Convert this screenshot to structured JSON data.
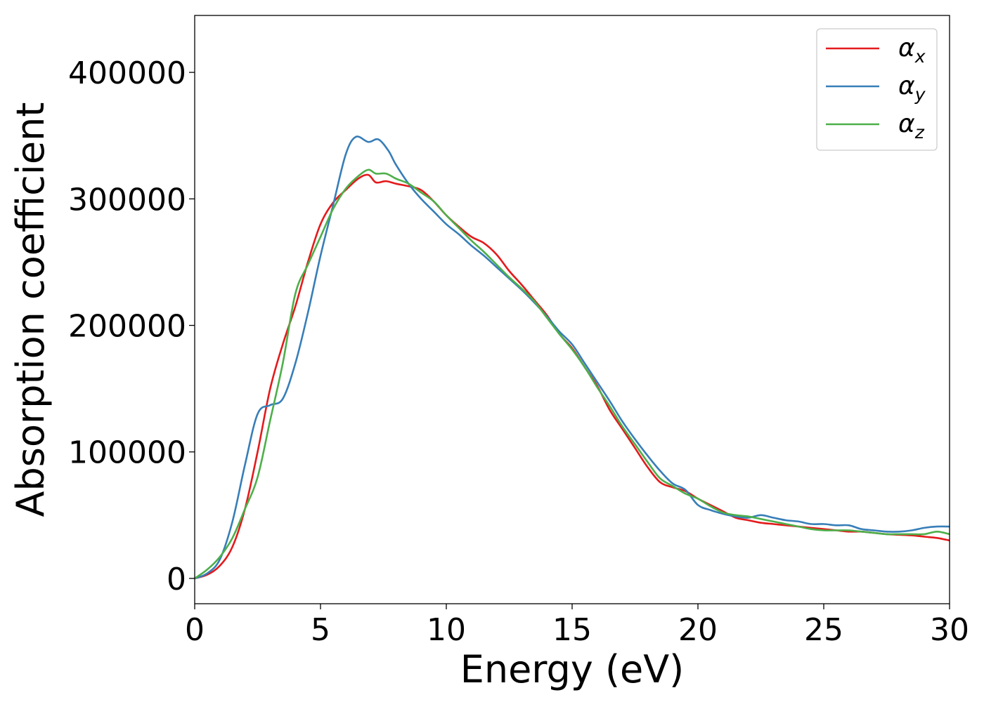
{
  "chart_data": {
    "type": "line",
    "xlabel": "Energy (eV)",
    "ylabel": "Absorption coefficient",
    "xlim": [
      0,
      30
    ],
    "ylim": [
      -20000,
      445000
    ],
    "x_ticks": [
      0,
      5,
      10,
      15,
      20,
      25,
      30
    ],
    "y_ticks": [
      0,
      100000,
      200000,
      300000,
      400000
    ],
    "grid": false,
    "legend_position": "top-right",
    "series": [
      {
        "name": "α",
        "subscript": "x",
        "color": "#e41a1c",
        "x": [
          0,
          0.5,
          1,
          1.5,
          2,
          2.5,
          3,
          3.5,
          4,
          4.5,
          5,
          5.5,
          6,
          6.5,
          6.9,
          7.2,
          7.6,
          8,
          8.5,
          9,
          9.5,
          10,
          10.5,
          11,
          11.5,
          12,
          12.5,
          13,
          13.5,
          14,
          14.5,
          15,
          15.5,
          16,
          16.5,
          17,
          17.5,
          18,
          18.5,
          19,
          19.5,
          20,
          20.5,
          21,
          21.5,
          22,
          22.5,
          23,
          23.5,
          24,
          24.5,
          25,
          25.5,
          26,
          26.5,
          27,
          27.5,
          28,
          28.5,
          29,
          29.5,
          30
        ],
        "y": [
          0,
          3000,
          10000,
          25000,
          55000,
          100000,
          150000,
          185000,
          215000,
          250000,
          280000,
          297000,
          307000,
          316000,
          319000,
          313000,
          314000,
          312000,
          310000,
          307000,
          298000,
          287000,
          278000,
          270000,
          265000,
          256000,
          243000,
          232000,
          220000,
          208000,
          193000,
          182000,
          167000,
          152000,
          133000,
          118000,
          103000,
          88000,
          76000,
          72000,
          69000,
          63000,
          58000,
          53000,
          48000,
          46000,
          44000,
          43000,
          42000,
          41000,
          40000,
          39000,
          38000,
          37000,
          37000,
          36000,
          35000,
          34500,
          34000,
          33000,
          32000,
          30000
        ]
      },
      {
        "name": "α",
        "subscript": "y",
        "color": "#377eb8",
        "x": [
          0,
          0.5,
          1,
          1.5,
          2,
          2.5,
          3,
          3.5,
          4,
          4.5,
          5,
          5.5,
          6,
          6.4,
          6.9,
          7.3,
          7.7,
          8,
          8.5,
          9,
          9.5,
          10,
          10.5,
          11,
          11.5,
          12,
          12.5,
          13,
          13.5,
          14,
          14.5,
          15,
          15.5,
          16,
          16.5,
          17,
          17.5,
          18,
          18.5,
          19,
          19.5,
          20,
          20.5,
          21,
          21.5,
          22,
          22.5,
          23,
          23.5,
          24,
          24.5,
          25,
          25.5,
          26,
          26.5,
          27,
          27.5,
          28,
          28.5,
          29,
          29.5,
          30
        ],
        "y": [
          0,
          4000,
          15000,
          45000,
          90000,
          130000,
          137000,
          142000,
          170000,
          210000,
          255000,
          295000,
          335000,
          349000,
          345000,
          347000,
          338000,
          327000,
          312000,
          300000,
          290000,
          280000,
          272000,
          263000,
          255000,
          246000,
          237000,
          228000,
          218000,
          207000,
          195000,
          185000,
          170000,
          155000,
          140000,
          124000,
          110000,
          97000,
          85000,
          75000,
          70000,
          58000,
          54000,
          51000,
          49000,
          48000,
          50000,
          48000,
          46000,
          45000,
          43000,
          43000,
          42000,
          42000,
          39000,
          38000,
          37000,
          37000,
          38000,
          40000,
          41000,
          41000
        ]
      },
      {
        "name": "α",
        "subscript": "z",
        "color": "#4daf4a",
        "x": [
          0,
          0.5,
          1,
          1.5,
          2,
          2.5,
          3,
          3.5,
          4,
          4.5,
          5,
          5.5,
          6,
          6.5,
          6.9,
          7.2,
          7.6,
          8,
          8.5,
          9,
          9.5,
          10,
          10.5,
          11,
          11.5,
          12,
          12.5,
          13,
          13.5,
          14,
          14.5,
          15,
          15.5,
          16,
          16.5,
          17,
          17.5,
          18,
          18.5,
          19,
          19.5,
          20,
          20.5,
          21,
          21.5,
          22,
          22.5,
          23,
          23.5,
          24,
          24.5,
          25,
          25.5,
          26,
          26.5,
          27,
          27.5,
          28,
          28.5,
          29,
          29.5,
          30
        ],
        "y": [
          0,
          7000,
          17000,
          32000,
          55000,
          80000,
          125000,
          170000,
          225000,
          248000,
          270000,
          292000,
          308000,
          318000,
          323000,
          320000,
          320000,
          316000,
          312000,
          305000,
          298000,
          287000,
          277000,
          267000,
          258000,
          248000,
          238000,
          229000,
          219000,
          206000,
          193000,
          181000,
          167000,
          151000,
          136000,
          120000,
          106000,
          92000,
          79000,
          73000,
          67000,
          63000,
          57000,
          52000,
          50000,
          49000,
          47000,
          45000,
          43000,
          41000,
          39000,
          38000,
          38000,
          38000,
          37000,
          36000,
          35000,
          35000,
          35000,
          35000,
          37000,
          35000
        ]
      }
    ]
  }
}
